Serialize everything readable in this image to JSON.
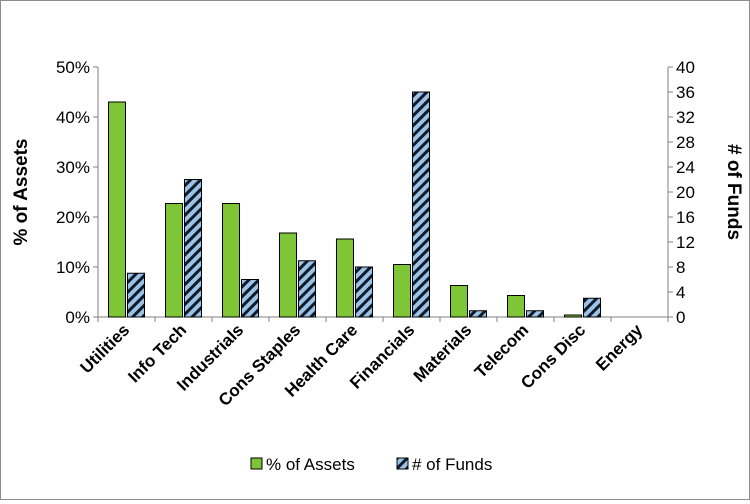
{
  "chart_data": {
    "type": "bar",
    "categories": [
      "Utilities",
      "Info Tech",
      "Industrials",
      "Cons Staples",
      "Health Care",
      "Financials",
      "Materials",
      "Telecom",
      "Cons Disc",
      "Energy"
    ],
    "series": [
      {
        "name": "% of Assets",
        "axis": "left",
        "values": [
          43,
          22.7,
          22.7,
          16.8,
          15.6,
          10.5,
          6.3,
          4.3,
          0.4,
          0
        ],
        "color": "#7ec636"
      },
      {
        "name": "# of Funds",
        "axis": "right",
        "values": [
          7,
          22,
          6,
          9,
          8,
          36,
          1,
          1,
          3,
          0
        ],
        "color": "#9cc3e6",
        "pattern": "diagonal-stripes"
      }
    ],
    "ylabel": "% of Assets",
    "ylabel_right": "# of Funds",
    "ylim": [
      0,
      50
    ],
    "ylim_right": [
      0,
      40
    ],
    "yticks": [
      "0%",
      "10%",
      "20%",
      "30%",
      "40%",
      "50%"
    ],
    "yticks_right": [
      "0",
      "4",
      "8",
      "12",
      "16",
      "20",
      "24",
      "28",
      "32",
      "36",
      "40"
    ],
    "grid": false,
    "legend": "bottom"
  }
}
